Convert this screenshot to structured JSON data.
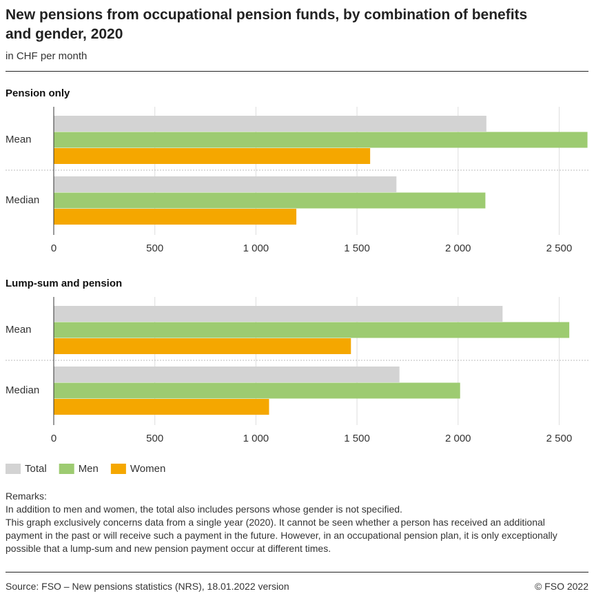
{
  "title": "New pensions from occupational pension funds, by combination of benefits and gender, 2020",
  "subtitle": "in CHF per month",
  "legend": [
    {
      "name": "Total",
      "color": "#d3d3d3"
    },
    {
      "name": "Men",
      "color": "#9dcb71"
    },
    {
      "name": "Women",
      "color": "#f5a700"
    }
  ],
  "chart_data": [
    {
      "type": "bar",
      "orientation": "horizontal",
      "title": "Pension only",
      "categories": [
        "Mean",
        "Median"
      ],
      "series": [
        {
          "values": [
            2140,
            1695
          ]
        },
        {
          "values": [
            2640,
            2135
          ]
        },
        {
          "values": [
            1565,
            1200
          ]
        }
      ],
      "xlim": [
        0,
        2645
      ],
      "xticks": [
        0,
        500,
        {
          "value": 1000,
          "label": "1 000"
        },
        {
          "value": 1500,
          "label": "1 500"
        },
        {
          "value": 2000,
          "label": "2 000"
        },
        {
          "value": 2500,
          "label": "2 500"
        }
      ],
      "grid": true
    },
    {
      "type": "bar",
      "orientation": "horizontal",
      "title": "Lump-sum and pension",
      "categories": [
        "Mean",
        "Median"
      ],
      "series": [
        {
          "values": [
            2220,
            1710
          ]
        },
        {
          "values": [
            2550,
            2010
          ]
        },
        {
          "values": [
            1470,
            1065
          ]
        }
      ],
      "xlim": [
        0,
        2645
      ],
      "xticks": [
        0,
        500,
        {
          "value": 1000,
          "label": "1 000"
        },
        {
          "value": 1500,
          "label": "1 500"
        },
        {
          "value": 2000,
          "label": "2 000"
        },
        {
          "value": 2500,
          "label": "2 500"
        }
      ],
      "grid": true
    }
  ],
  "remarks": {
    "heading": "Remarks:",
    "lines": [
      "In addition to men and women, the total also includes persons whose gender is not specified.",
      "This graph exclusively concerns data from a single year (2020). It cannot be seen whether a person has received an additional payment in the past or will receive such a payment in the future. However, in an occupational pension plan, it is only exceptionally possible that a lump-sum and new pension payment occur at different times."
    ]
  },
  "source": "Source: FSO – New pensions statistics (NRS), 18.01.2022 version",
  "copyright": "© FSO 2022"
}
